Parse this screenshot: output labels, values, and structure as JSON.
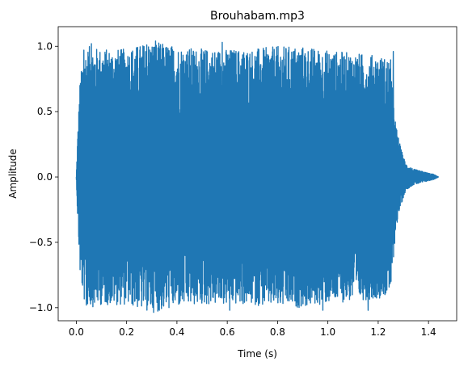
{
  "chart_data": {
    "type": "line",
    "title": "Brouhabam.mp3",
    "xlabel": "Time (s)",
    "ylabel": "Amplitude",
    "xlim": [
      -0.072,
      1.512
    ],
    "ylim": [
      -1.1,
      1.15
    ],
    "xticks": [
      0.0,
      0.2,
      0.4,
      0.6,
      0.8,
      1.0,
      1.2,
      1.4
    ],
    "xtick_labels": [
      "0.0",
      "0.2",
      "0.4",
      "0.6",
      "0.8",
      "1.0",
      "1.2",
      "1.4"
    ],
    "yticks": [
      -1.0,
      -0.5,
      0.0,
      0.5,
      1.0
    ],
    "ytick_labels": [
      "−1.0",
      "−0.5",
      "0.0",
      "0.5",
      "1.0"
    ],
    "grid": false,
    "legend": "none",
    "series": [
      {
        "color": "#1f77b4",
        "duration": 1.44,
        "envelope": {
          "t": [
            0.0,
            0.005,
            0.015,
            0.03,
            0.05,
            0.1,
            0.2,
            0.3,
            0.4,
            0.5,
            0.6,
            0.7,
            0.8,
            0.9,
            1.0,
            1.1,
            1.2,
            1.25,
            1.27,
            1.29,
            1.31,
            1.34,
            1.38,
            1.42,
            1.44
          ],
          "peak": [
            0.0,
            0.3,
            0.75,
            0.95,
            1.0,
            0.98,
            0.98,
            1.04,
            1.0,
            0.98,
            0.98,
            0.98,
            1.0,
            1.0,
            0.97,
            0.95,
            0.93,
            0.9,
            0.4,
            0.22,
            0.1,
            0.06,
            0.04,
            0.02,
            0.0
          ]
        },
        "peaks": [
          {
            "t": 0.03,
            "value": 0.97
          },
          {
            "t": 0.06,
            "value": 1.02
          },
          {
            "t": 0.28,
            "value": 1.01
          },
          {
            "t": 0.315,
            "value": 1.04
          },
          {
            "t": 0.58,
            "value": 1.03
          },
          {
            "t": 1.26,
            "value": 0.96
          },
          {
            "t": 0.33,
            "value": -1.02
          },
          {
            "t": 0.61,
            "value": -1.02
          },
          {
            "t": 0.98,
            "value": -1.02
          },
          {
            "t": 1.16,
            "value": -1.02
          },
          {
            "t": 0.04,
            "value": -0.98
          }
        ]
      }
    ]
  }
}
